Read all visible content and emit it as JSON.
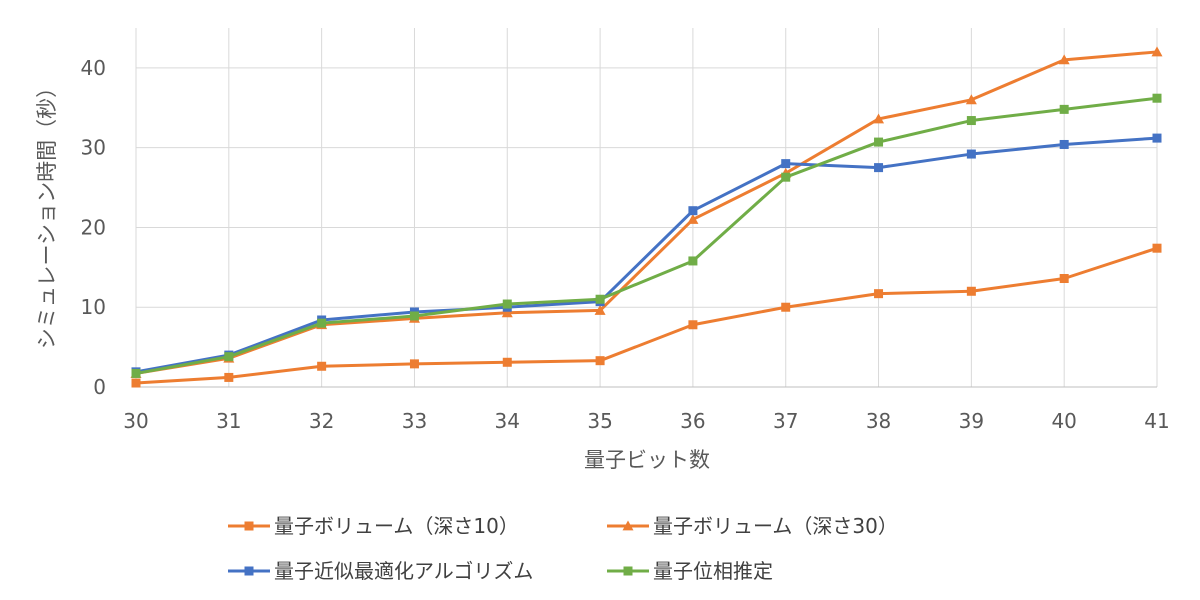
{
  "chart_data": {
    "type": "line",
    "title": "",
    "xlabel": "量子ビット数",
    "ylabel": "シミュレーション時間（秒）",
    "x": [
      30,
      31,
      32,
      33,
      34,
      35,
      36,
      37,
      38,
      39,
      40,
      41
    ],
    "xlim": [
      30,
      41
    ],
    "ylim": [
      0,
      45
    ],
    "yticks": [
      0,
      10,
      20,
      30,
      40
    ],
    "grid": true,
    "legend_position": "bottom",
    "series": [
      {
        "name": "量子ボリューム（深さ10）",
        "color": "#ED7D31",
        "marker": "square",
        "values": [
          0.5,
          1.2,
          2.6,
          2.9,
          3.1,
          3.3,
          7.8,
          10.0,
          11.7,
          12.0,
          13.6,
          17.4
        ]
      },
      {
        "name": "量子ボリューム（深さ30）",
        "color": "#ED7D31",
        "marker": "triangle",
        "values": [
          1.7,
          3.6,
          7.8,
          8.6,
          9.3,
          9.6,
          21.0,
          26.8,
          33.6,
          36.0,
          41.0,
          42.0
        ]
      },
      {
        "name": "量子近似最適化アルゴリズム",
        "color": "#4472C4",
        "marker": "square",
        "values": [
          1.9,
          4.0,
          8.4,
          9.4,
          10.0,
          10.7,
          22.1,
          28.0,
          27.5,
          29.2,
          30.4,
          31.2
        ]
      },
      {
        "name": "量子位相推定",
        "color": "#70AD47",
        "marker": "square",
        "values": [
          1.7,
          3.8,
          8.0,
          8.9,
          10.4,
          11.0,
          15.8,
          26.3,
          30.7,
          33.4,
          34.8,
          36.2
        ]
      }
    ]
  }
}
